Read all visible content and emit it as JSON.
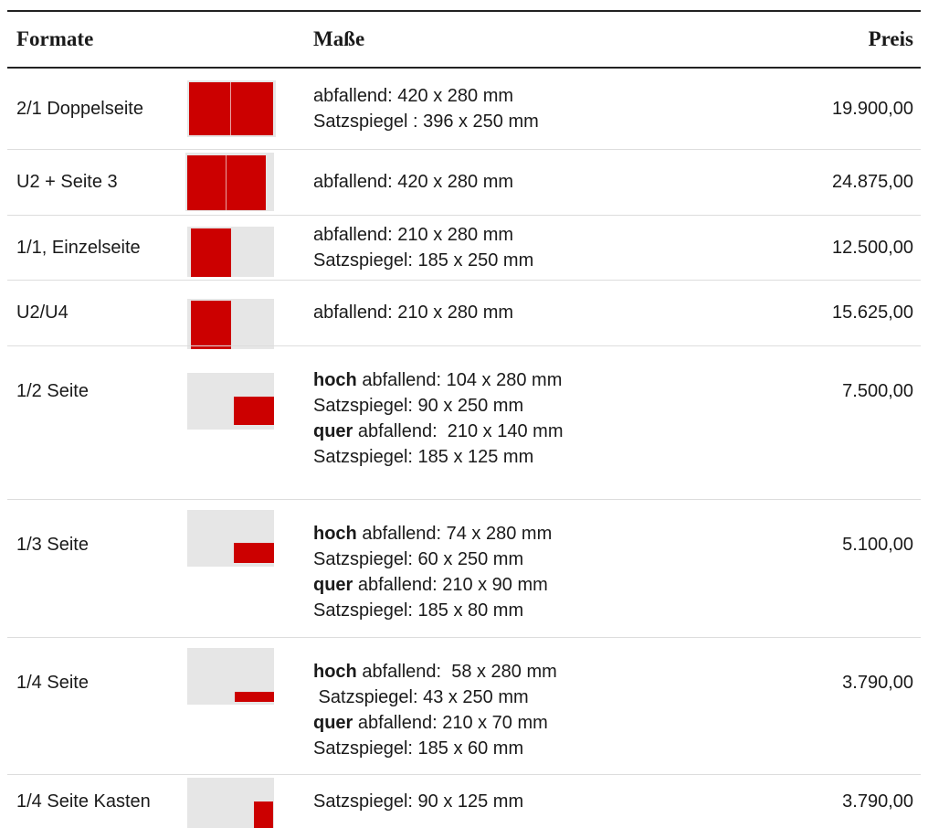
{
  "header": {
    "format": "Formate",
    "dims": "Maße",
    "price": "Preis"
  },
  "rows": [
    {
      "format": "2/1 Doppelseite",
      "lines": [
        {
          "text": "abfallend: 420 x 280 mm"
        },
        {
          "text": "Satzspiegel : 396 x 250 mm"
        }
      ],
      "price": "19.900,00"
    },
    {
      "format": "U2 + Seite 3",
      "lines": [
        {
          "text": "abfallend: 420 x 280 mm"
        }
      ],
      "price": "24.875,00"
    },
    {
      "format": "1/1, Einzelseite",
      "lines": [
        {
          "text": "abfallend: 210 x 280 mm"
        },
        {
          "text": "Satzspiegel: 185 x 250 mm"
        }
      ],
      "price": "12.500,00"
    },
    {
      "format": "U2/U4",
      "lines": [
        {
          "text": "abfallend: 210 x 280 mm"
        }
      ],
      "price": "15.625,00"
    },
    {
      "format": "1/2 Seite",
      "lines": [
        {
          "bold": "hoch",
          "text": " abfallend: 104 x 280 mm"
        },
        {
          "text": "Satzspiegel: 90 x 250 mm"
        },
        {
          "bold": "quer",
          "text": " abfallend:  210 x 140 mm"
        },
        {
          "text": "Satzspiegel: 185 x 125 mm"
        }
      ],
      "price": "7.500,00"
    },
    {
      "format": "1/3 Seite",
      "lines": [
        {
          "bold": "hoch",
          "text": " abfallend: 74 x 280 mm"
        },
        {
          "text": "Satzspiegel: 60 x 250 mm"
        },
        {
          "bold": "quer",
          "text": " abfallend: 210 x 90 mm"
        },
        {
          "text": "Satzspiegel: 185 x 80 mm"
        }
      ],
      "price": "5.100,00"
    },
    {
      "format": "1/4 Seite",
      "lines": [
        {
          "bold": "hoch",
          "text": " abfallend:  58 x 280 mm"
        },
        {
          "text": " Satzspiegel: 43 x 250 mm"
        },
        {
          "bold": "quer",
          "text": " abfallend: 210 x 70 mm"
        },
        {
          "text": "Satzspiegel: 185 x 60 mm"
        }
      ],
      "price": "3.790,00"
    },
    {
      "format": "1/4 Seite Kasten",
      "lines": [
        {
          "text": "Satzspiegel: 90 x 125 mm"
        }
      ],
      "price": "3.790,00"
    }
  ]
}
